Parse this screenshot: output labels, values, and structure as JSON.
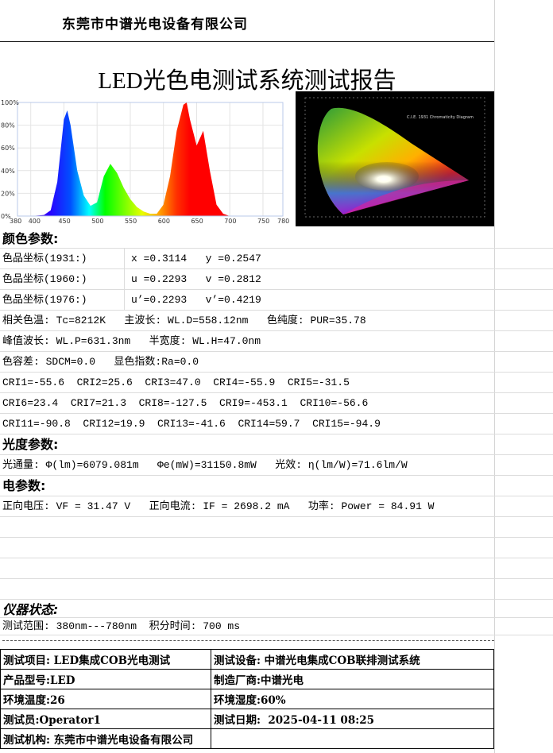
{
  "header": {
    "company": "东莞市中谱光电设备有限公司",
    "title": "LED光色电测试系统测试报告"
  },
  "chart_data": {
    "type": "area",
    "xlabel": "",
    "ylabel": "",
    "xlim": [
      380,
      780
    ],
    "ylim": [
      0,
      100
    ],
    "x_ticks": [
      "380",
      "400",
      "450",
      "500",
      "550",
      "600",
      "650",
      "700",
      "750",
      "780"
    ],
    "y_ticks": [
      "0%",
      "20%",
      "40%",
      "60%",
      "80%",
      "100%"
    ],
    "grid": true,
    "x": [
      380,
      400,
      420,
      430,
      440,
      450,
      455,
      460,
      470,
      480,
      490,
      500,
      510,
      520,
      530,
      540,
      550,
      560,
      570,
      580,
      590,
      600,
      610,
      620,
      630,
      635,
      640,
      650,
      660,
      670,
      680,
      690,
      700,
      780
    ],
    "values": [
      0,
      0,
      1,
      5,
      30,
      85,
      93,
      80,
      40,
      18,
      9,
      12,
      35,
      46,
      38,
      25,
      15,
      8,
      4,
      2,
      2,
      10,
      35,
      75,
      98,
      100,
      85,
      62,
      75,
      40,
      10,
      2,
      0,
      0
    ]
  },
  "cie": {
    "title": "C.I.E. 1931 Chromaticity Diagram"
  },
  "color": {
    "section": "颜色参数:",
    "rows": [
      {
        "label": "色品坐标(1931:)",
        "value": "x =0.3114   y =0.2547"
      },
      {
        "label": "色品坐标(1960:)",
        "value": "u =0.2293   v =0.2812"
      },
      {
        "label": "色品坐标(1976:)",
        "value": "u’=0.2293   v’=0.4219"
      }
    ],
    "lines": [
      "相关色温: Tc=8212K   主波长: WL.D=558.12nm   色纯度: PUR=35.78",
      "峰值波长: WL.P=631.3nm   半宽度: WL.H=47.0nm",
      "色容差: SDCM=0.0   显色指数:Ra=0.0",
      "CRI1=-55.6  CRI2=25.6  CRI3=47.0  CRI4=-55.9  CRI5=-31.5",
      "CRI6=23.4  CRI7=21.3  CRI8=-127.5  CRI9=-453.1  CRI10=-56.6",
      "CRI11=-90.8  CRI12=19.9  CRI13=-41.6  CRI14=59.7  CRI15=-94.9"
    ]
  },
  "photo": {
    "section": "光度参数:",
    "line": "光通量: Φ(lm)=6079.081m   Φe(mW)=31150.8mW   光效: η(lm/W)=71.6lm/W"
  },
  "elec": {
    "section": "电参数:",
    "line": "正向电压: VF = 31.47 V   正向电流: IF = 2698.2 mA   功率: Power = 84.91 W"
  },
  "instrument": {
    "section": "仪器状态:",
    "line": "测试范围: 380nm---780nm  积分时间: 700 ms"
  },
  "info": [
    [
      "测试项目: LED集成COB光电测试",
      "测试设备: 中谱光电集成COB联排测试系统"
    ],
    [
      "产品型号:LED",
      "制造厂商:中谱光电"
    ],
    [
      "环境温度:26",
      "环境湿度:60%"
    ],
    [
      "测试员:Operator1",
      "测试日期:  2025-04-11 08:25"
    ],
    [
      "测试机构: 东莞市中谱光电设备有限公司",
      ""
    ]
  ]
}
